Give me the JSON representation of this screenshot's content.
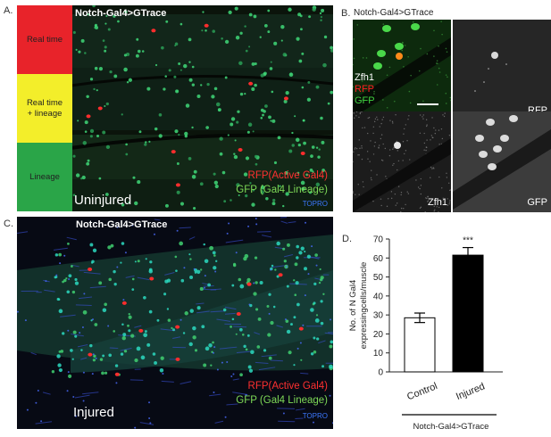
{
  "panel_a": {
    "letter": "A.",
    "title": "Notch-Gal4>GTrace",
    "legend": {
      "real_time": "Real time",
      "real_time_lineage_line1": "Real time",
      "real_time_lineage_line2": "+ lineage",
      "lineage": "Lineage",
      "colors": {
        "real_time": "#e8232a",
        "real_time_lineage": "#f3ee2a",
        "lineage": "#2aa548"
      }
    },
    "condition": "Uninjured",
    "rfp": "RFP(Active Gal4)",
    "gfp": "GFP (Gal4 Lineage)",
    "topro": "TOPRO"
  },
  "panel_b": {
    "letter": "B.",
    "title": "Notch-Gal4>GTrace",
    "merge_labels": {
      "zfh1": "Zfh1",
      "rfp": "RFP",
      "gfp": "GFP"
    },
    "rfp_tile": "RFP",
    "zfh1_tile": "Zfh1",
    "gfp_tile": "GFP"
  },
  "panel_c": {
    "letter": "C.",
    "title": "Notch-Gal4>GTrace",
    "condition": "Injured",
    "rfp": "RFP(Active Gal4)",
    "gfp": "GFP (Gal4 Lineage)",
    "topro": "TOPRO"
  },
  "panel_d": {
    "letter": "D.",
    "genotype_label": "Notch-Gal4>GTrace"
  },
  "chart_data": {
    "type": "bar",
    "categories": [
      "Control",
      "Injured"
    ],
    "values": [
      28.5,
      61.5
    ],
    "errors": [
      2.5,
      4
    ],
    "bar_colors": [
      "#ffffff",
      "#000000"
    ],
    "ylabel_line1": "No. of N Gal4",
    "ylabel_line2": "expressingcells/muscle",
    "ylim": [
      0,
      70
    ],
    "yticks": [
      0,
      10,
      20,
      30,
      40,
      50,
      60,
      70
    ],
    "annotation": "***",
    "xlabel": "Notch-Gal4>GTrace"
  }
}
